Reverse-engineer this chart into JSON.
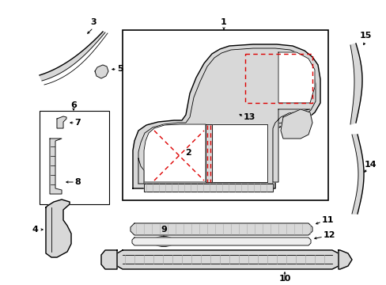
{
  "bg_color": "#ffffff",
  "fig_width": 4.89,
  "fig_height": 3.6,
  "dpi": 100,
  "line_color": "#000000",
  "red_color": "#dd0000",
  "fill_light": "#d8d8d8",
  "fill_white": "#ffffff"
}
